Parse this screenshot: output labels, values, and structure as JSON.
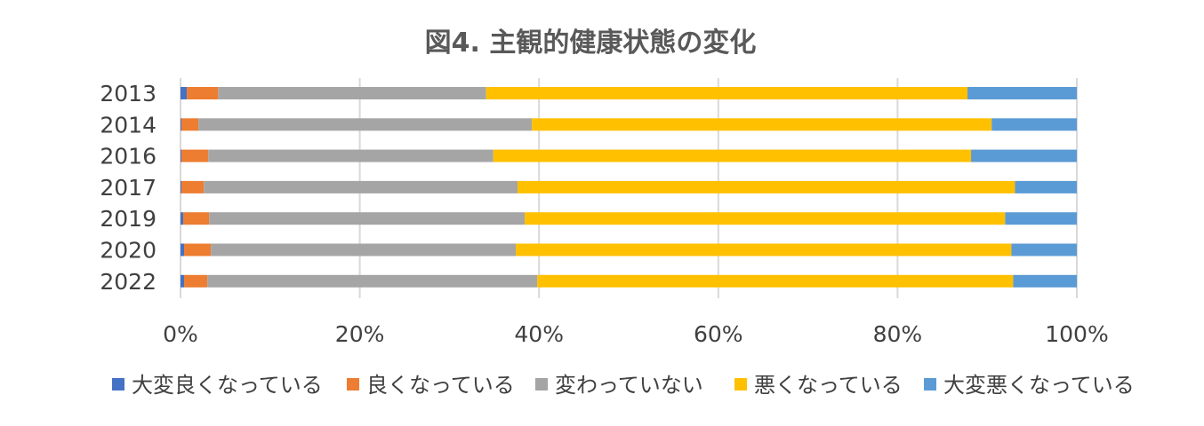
{
  "chart_data": {
    "type": "bar",
    "orientation": "horizontal",
    "stacked": "percent",
    "title": "図4. 主観的健康状態の変化",
    "xlabel": "",
    "ylabel": "",
    "xlim": [
      0,
      100
    ],
    "x_ticks": [
      "0%",
      "20%",
      "40%",
      "60%",
      "80%",
      "100%"
    ],
    "grid": true,
    "legend_position": "bottom",
    "categories": [
      "2013",
      "2014",
      "2016",
      "2017",
      "2019",
      "2020",
      "2022"
    ],
    "series": [
      {
        "name": "大変良くなっている",
        "color": "#4472c4",
        "values": [
          0.7,
          0.1,
          0.1,
          0.1,
          0.3,
          0.4,
          0.4
        ]
      },
      {
        "name": "良くなっている",
        "color": "#ed7d31",
        "values": [
          3.5,
          1.9,
          3.0,
          2.5,
          2.9,
          3.0,
          2.6
        ]
      },
      {
        "name": "変わっていない",
        "color": "#a5a5a5",
        "values": [
          29.9,
          37.2,
          31.8,
          35.0,
          35.2,
          34.0,
          36.8
        ]
      },
      {
        "name": "悪くなっている",
        "color": "#ffc000",
        "values": [
          53.7,
          51.3,
          53.3,
          55.5,
          53.6,
          55.3,
          53.1
        ]
      },
      {
        "name": "大変悪くなっている",
        "color": "#5b9bd5",
        "values": [
          12.2,
          9.5,
          11.8,
          6.9,
          8.0,
          7.3,
          7.1
        ]
      }
    ]
  }
}
